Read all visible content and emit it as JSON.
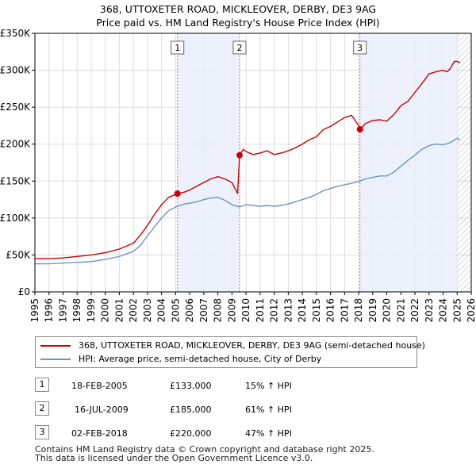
{
  "chart_data": {
    "type": "line",
    "title": "368, UTTOXETER ROAD, MICKLEOVER, DERBY, DE3 9AG",
    "subtitle": "Price paid vs. HM Land Registry's House Price Index (HPI)",
    "xlim": [
      1995,
      2026
    ],
    "ylim": [
      0,
      350000
    ],
    "x_ticks": [
      "1995",
      "1996",
      "1997",
      "1998",
      "1999",
      "2000",
      "2001",
      "2002",
      "2003",
      "2004",
      "2005",
      "2006",
      "2007",
      "2008",
      "2009",
      "2010",
      "2011",
      "2012",
      "2013",
      "2014",
      "2015",
      "2016",
      "2017",
      "2018",
      "2019",
      "2020",
      "2021",
      "2022",
      "2023",
      "2024",
      "2025",
      "2026"
    ],
    "y_ticks": [
      {
        "value": 0,
        "label": "£0"
      },
      {
        "value": 50000,
        "label": "£50K"
      },
      {
        "value": 100000,
        "label": "£100K"
      },
      {
        "value": 150000,
        "label": "£150K"
      },
      {
        "value": 200000,
        "label": "£200K"
      },
      {
        "value": 250000,
        "label": "£250K"
      },
      {
        "value": 300000,
        "label": "£300K"
      },
      {
        "value": 350000,
        "label": "£350K"
      }
    ],
    "series": [
      {
        "name": "368, UTTOXETER ROAD, MICKLEOVER, DERBY, DE3 9AG (semi-detached house)",
        "color": "#cc0000",
        "x": [
          1995.0,
          1996.0,
          1997.0,
          1998.0,
          1999.0,
          2000.0,
          2001.0,
          2002.0,
          2002.5,
          2003.0,
          2003.5,
          2004.0,
          2004.5,
          2005.13,
          2005.6,
          2006.0,
          2006.5,
          2007.0,
          2007.5,
          2008.0,
          2008.5,
          2009.0,
          2009.4,
          2009.54,
          2009.8,
          2010.0,
          2010.5,
          2011.0,
          2011.5,
          2012.0,
          2012.5,
          2013.0,
          2013.5,
          2014.0,
          2014.5,
          2015.0,
          2015.5,
          2016.0,
          2016.5,
          2017.0,
          2017.5,
          2018.0,
          2018.09,
          2018.5,
          2019.0,
          2019.5,
          2020.0,
          2020.5,
          2021.0,
          2021.5,
          2022.0,
          2022.5,
          2023.0,
          2023.5,
          2024.0,
          2024.3,
          2024.5,
          2024.8,
          2025.0,
          2025.2
        ],
        "y": [
          45000,
          45000,
          46000,
          48000,
          50000,
          53000,
          58000,
          66000,
          77000,
          90000,
          105000,
          118000,
          128000,
          133000,
          135000,
          138000,
          143000,
          148000,
          153000,
          156000,
          153000,
          148000,
          133000,
          185000,
          193000,
          190000,
          186000,
          188000,
          191000,
          186000,
          188000,
          191000,
          195000,
          200000,
          206000,
          210000,
          220000,
          224000,
          230000,
          236000,
          239000,
          225000,
          220000,
          228000,
          232000,
          233000,
          231000,
          240000,
          252000,
          258000,
          270000,
          282000,
          295000,
          298000,
          300000,
          298000,
          302000,
          312000,
          312000,
          310000
        ]
      },
      {
        "name": "HPI: Average price, semi-detached house, City of Derby",
        "color": "#6a95c8",
        "x": [
          1995.0,
          1996.0,
          1997.0,
          1998.0,
          1999.0,
          2000.0,
          2001.0,
          2002.0,
          2002.5,
          2003.0,
          2003.5,
          2004.0,
          2004.5,
          2005.13,
          2005.6,
          2006.0,
          2006.5,
          2007.0,
          2007.5,
          2008.0,
          2008.5,
          2009.0,
          2009.54,
          2010.0,
          2010.5,
          2011.0,
          2011.5,
          2012.0,
          2012.5,
          2013.0,
          2013.5,
          2014.0,
          2014.5,
          2015.0,
          2015.5,
          2016.0,
          2016.5,
          2017.0,
          2017.5,
          2018.09,
          2018.5,
          2019.0,
          2019.5,
          2020.0,
          2020.5,
          2021.0,
          2021.5,
          2022.0,
          2022.5,
          2023.0,
          2023.5,
          2024.0,
          2024.5,
          2025.0,
          2025.2
        ],
        "y": [
          38000,
          38000,
          39000,
          40000,
          41000,
          44000,
          48000,
          55000,
          63000,
          76000,
          88000,
          100000,
          110000,
          116000,
          119000,
          120000,
          122000,
          125000,
          127000,
          128000,
          124000,
          118000,
          115000,
          118000,
          117000,
          116000,
          117000,
          116000,
          117000,
          119000,
          122000,
          125000,
          128000,
          132000,
          137000,
          140000,
          143000,
          145000,
          147000,
          150000,
          153000,
          155000,
          157000,
          157000,
          162000,
          170000,
          178000,
          185000,
          193000,
          198000,
          200000,
          199000,
          202000,
          208000,
          206000
        ]
      }
    ],
    "sales": [
      {
        "label": "1",
        "x": 2005.13,
        "price": 133000
      },
      {
        "label": "2",
        "x": 2009.54,
        "price": 185000
      },
      {
        "label": "3",
        "x": 2018.09,
        "price": 220000
      }
    ],
    "future_hatch_from": 2025.0
  },
  "table": [
    {
      "num": "1",
      "date": "18-FEB-2005",
      "price": "£133,000",
      "hpi": "15% ↑ HPI"
    },
    {
      "num": "2",
      "date": "16-JUL-2009",
      "price": "£185,000",
      "hpi": "61% ↑ HPI"
    },
    {
      "num": "3",
      "date": "02-FEB-2018",
      "price": "£220,000",
      "hpi": "47% ↑ HPI"
    }
  ],
  "footer": {
    "line1": "Contains HM Land Registry data © Crown copyright and database right 2025.",
    "line2": "This data is licensed under the Open Government Licence v3.0."
  }
}
